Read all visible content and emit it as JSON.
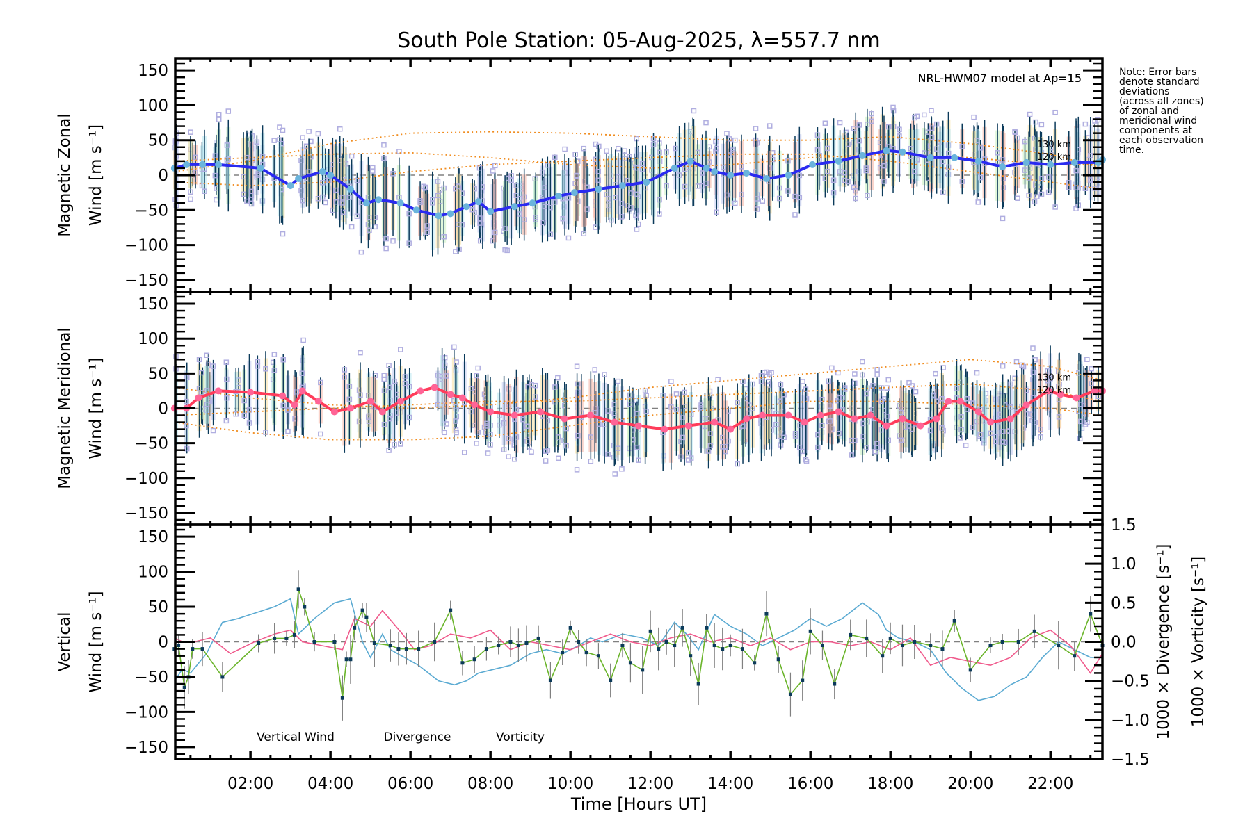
{
  "chart_data": [
    {
      "type": "line",
      "panel": "zonal",
      "title": "South Pole Station: 05-Aug-2025, λ=557.7 nm",
      "ylabel_line1": "Magnetic Zonal",
      "ylabel_line2": "Wind [m s⁻¹]",
      "ylim": [
        -167,
        167
      ],
      "yticks": [
        -150,
        -100,
        -50,
        0,
        50,
        100,
        150
      ],
      "model_label": "NRL-HWM07 model at Ap=15",
      "model_alt_labels": [
        "130 km",
        "120 km"
      ],
      "colors": {
        "line": "#2a2af0",
        "marker": "#6ab4dc",
        "errorbar": "#0b3a5a",
        "scatter": "#b0aee0",
        "model": "#f08c1e"
      },
      "series": [
        {
          "name": "Zonal wind",
          "x": [
            0.1,
            0.4,
            0.8,
            1.2,
            2.25,
            3.0,
            3.2,
            3.8,
            4.0,
            4.5,
            4.9,
            5.2,
            5.75,
            6.15,
            6.7,
            7.0,
            7.4,
            7.7,
            8.0,
            8.6,
            9.05,
            9.7,
            10.1,
            10.7,
            11.3,
            11.9,
            12.6,
            13.0,
            13.4,
            13.6,
            14.0,
            14.4,
            14.9,
            15.45,
            16.05,
            16.7,
            17.3,
            17.9,
            18.3,
            19.0,
            19.6,
            20.2,
            20.8,
            21.4,
            22.0,
            22.6,
            23.2,
            23.3
          ],
          "y": [
            10,
            15,
            15,
            15,
            10,
            -15,
            -5,
            5,
            0,
            -20,
            -40,
            -35,
            -40,
            -50,
            -58,
            -55,
            -45,
            -38,
            -52,
            -45,
            -40,
            -30,
            -25,
            -20,
            -15,
            -10,
            10,
            20,
            10,
            5,
            0,
            3,
            -5,
            0,
            15,
            20,
            28,
            35,
            33,
            25,
            25,
            20,
            12,
            18,
            15,
            18,
            18,
            22
          ]
        },
        {
          "name": "HWM07 model (dotted, upper)",
          "x": [
            0.1,
            2,
            4,
            6,
            8,
            10,
            12,
            14,
            16,
            18,
            20,
            22,
            23.3
          ],
          "y": [
            5,
            20,
            45,
            60,
            62,
            60,
            55,
            50,
            50,
            55,
            45,
            30,
            10
          ]
        },
        {
          "name": "HWM07 model (dotted, mid)",
          "x": [
            0.1,
            2,
            4,
            6,
            8,
            10,
            12,
            14,
            16,
            18,
            20,
            22,
            23.3
          ],
          "y": [
            20,
            25,
            30,
            32,
            25,
            15,
            10,
            15,
            25,
            30,
            25,
            15,
            15
          ]
        },
        {
          "name": "HWM07 model (dotted, lower)",
          "x": [
            0.1,
            2,
            4,
            6,
            8,
            10,
            12,
            14,
            16,
            18,
            20,
            22,
            23.3
          ],
          "y": [
            -10,
            -15,
            -10,
            5,
            15,
            20,
            25,
            30,
            30,
            20,
            5,
            -10,
            -20
          ]
        }
      ]
    },
    {
      "type": "line",
      "panel": "meridional",
      "ylabel_line1": "Magnetic Meridional",
      "ylabel_line2": "Wind [m s⁻¹]",
      "ylim": [
        -167,
        167
      ],
      "yticks": [
        -150,
        -100,
        -50,
        0,
        50,
        100,
        150
      ],
      "model_label": "NRL-HWM07 model at Ap=15",
      "model_alt_labels": [
        "130 km",
        "120 km"
      ],
      "colors": {
        "line": "#ff3c5a",
        "marker": "#ff6496",
        "errorbar": "#0b3a5a",
        "scatter": "#b0aee0",
        "model": "#f08c1e"
      },
      "series": [
        {
          "name": "Meridional wind",
          "x": [
            0.1,
            0.4,
            0.7,
            1.2,
            2.0,
            2.8,
            3.1,
            3.3,
            3.7,
            4.1,
            4.5,
            5.0,
            5.3,
            5.75,
            6.25,
            6.6,
            7.0,
            7.3,
            7.6,
            8.0,
            8.6,
            9.25,
            9.85,
            10.5,
            11.1,
            11.7,
            12.35,
            12.95,
            13.6,
            14.0,
            14.4,
            14.8,
            15.45,
            15.85,
            16.25,
            16.7,
            17.1,
            17.5,
            17.9,
            18.3,
            18.75,
            19.15,
            19.45,
            19.75,
            20.2,
            20.5,
            21.0,
            21.4,
            21.95,
            22.25,
            22.65,
            23.1,
            23.3
          ],
          "y": [
            0,
            0,
            15,
            25,
            23,
            18,
            5,
            25,
            10,
            -5,
            0,
            10,
            -5,
            10,
            25,
            30,
            20,
            15,
            5,
            -5,
            -10,
            -5,
            -15,
            -10,
            -20,
            -25,
            -30,
            -25,
            -20,
            -30,
            -15,
            -10,
            -10,
            -20,
            -10,
            -5,
            -15,
            -10,
            -25,
            -15,
            -25,
            -15,
            10,
            10,
            -5,
            -20,
            -15,
            5,
            25,
            20,
            15,
            25,
            25
          ]
        },
        {
          "name": "HWM07 model (dotted, upper)",
          "x": [
            0.1,
            2,
            4,
            6,
            8,
            10,
            12,
            14,
            16,
            18,
            20,
            22,
            23.3
          ],
          "y": [
            30,
            15,
            5,
            0,
            5,
            15,
            30,
            40,
            50,
            60,
            70,
            60,
            40
          ]
        },
        {
          "name": "HWM07 model (dotted, mid)",
          "x": [
            0.1,
            2,
            4,
            6,
            8,
            10,
            12,
            14,
            16,
            18,
            20,
            22,
            23.3
          ],
          "y": [
            -10,
            -5,
            0,
            5,
            10,
            10,
            15,
            20,
            25,
            30,
            35,
            25,
            10
          ]
        },
        {
          "name": "HWM07 model (dotted, lower)",
          "x": [
            0.1,
            2,
            4,
            6,
            8,
            10,
            12,
            14,
            16,
            18,
            20,
            22,
            23.3
          ],
          "y": [
            -20,
            -35,
            -45,
            -45,
            -40,
            -25,
            -10,
            0,
            10,
            10,
            5,
            0,
            -10
          ]
        }
      ]
    },
    {
      "type": "line",
      "panel": "vertical",
      "ylabel_line1": "Vertical",
      "ylabel_line2": "Wind [m s⁻¹]",
      "y2label_div": "1000 × Divergence [s⁻¹]",
      "y2label_vort": "1000 × Vorticity [s⁻¹]",
      "ylim": [
        -167,
        167
      ],
      "yticks": [
        -150,
        -100,
        -50,
        0,
        50,
        100,
        150
      ],
      "y2lim": [
        -1.5,
        1.5
      ],
      "y2ticks": [
        "1.5",
        "1.0",
        "0.5",
        "0.0",
        "-0.5",
        "-1.0",
        "-1.5"
      ],
      "xlabel": "Time [Hours UT]",
      "xlim": [
        0.12,
        23.3
      ],
      "xticks": [
        "02:00",
        "04:00",
        "06:00",
        "08:00",
        "10:00",
        "12:00",
        "14:00",
        "16:00",
        "18:00",
        "20:00",
        "22:00"
      ],
      "legend": [
        "Vertical Wind",
        "Divergence",
        "Vorticity"
      ],
      "legend_position": "bottom-left",
      "colors": {
        "vertical": "#6ab42a",
        "divergence": "#5aaad2",
        "vorticity": "#f05a8c",
        "marker": "#0b3a5a",
        "errorbar": "#808080"
      },
      "series": [
        {
          "name": "Vertical Wind",
          "x": [
            0.1,
            0.2,
            0.35,
            0.45,
            0.55,
            0.8,
            1.3,
            2.2,
            2.6,
            2.9,
            3.1,
            3.2,
            3.35,
            3.6,
            4.1,
            4.3,
            4.4,
            4.5,
            4.6,
            4.8,
            4.9,
            5.1,
            5.5,
            5.7,
            5.9,
            6.2,
            6.6,
            7.0,
            7.3,
            7.6,
            7.9,
            8.2,
            8.5,
            8.7,
            8.9,
            9.2,
            9.5,
            9.8,
            10.0,
            10.2,
            10.4,
            10.7,
            11.0,
            11.3,
            11.5,
            11.8,
            12.0,
            12.2,
            12.4,
            12.6,
            12.8,
            13.0,
            13.2,
            13.4,
            13.6,
            13.8,
            14.0,
            14.3,
            14.6,
            14.9,
            15.2,
            15.5,
            15.8,
            16.0,
            16.3,
            16.6,
            17.0,
            17.4,
            17.8,
            18.0,
            18.3,
            18.6,
            19.0,
            19.3,
            19.6,
            20.0,
            20.5,
            20.8,
            21.2,
            21.6,
            22.2,
            22.6,
            23.0,
            23.3
          ],
          "y": [
            -10,
            -5,
            -65,
            -50,
            -10,
            -10,
            -50,
            -2,
            5,
            5,
            10,
            75,
            50,
            0,
            0,
            -80,
            -25,
            -25,
            20,
            45,
            35,
            -2,
            -5,
            -10,
            -10,
            -10,
            0,
            45,
            -30,
            -25,
            -10,
            -5,
            0,
            -5,
            -2,
            5,
            -55,
            -15,
            20,
            0,
            -15,
            -20,
            -55,
            -5,
            -30,
            -40,
            15,
            -10,
            0,
            -5,
            20,
            -20,
            -60,
            20,
            -5,
            -10,
            -5,
            -10,
            -30,
            40,
            -25,
            -75,
            -55,
            15,
            -5,
            -60,
            10,
            5,
            -20,
            5,
            -5,
            0,
            -5,
            -10,
            30,
            -40,
            -5,
            0,
            0,
            15,
            -5,
            -20,
            40,
            -5
          ]
        },
        {
          "name": "Divergence",
          "x": [
            0.1,
            0.3,
            0.5,
            0.9,
            1.3,
            1.7,
            2.6,
            3.0,
            3.2,
            3.6,
            4.1,
            4.5,
            4.8,
            5.0,
            5.3,
            5.5,
            6.2,
            6.7,
            7.1,
            7.4,
            7.7,
            8.1,
            8.5,
            9.0,
            9.4,
            9.8,
            10.2,
            10.5,
            10.8,
            11.3,
            11.8,
            12.2,
            12.6,
            12.9,
            13.2,
            13.6,
            14.0,
            14.4,
            14.8,
            15.2,
            15.6,
            16.0,
            16.4,
            16.8,
            17.3,
            17.7,
            17.9,
            18.2,
            18.6,
            19.0,
            19.4,
            19.8,
            20.2,
            20.6,
            21.0,
            21.4,
            21.8,
            22.2,
            22.6,
            23.0,
            23.3
          ],
          "y": [
            -0.5,
            -0.35,
            -0.4,
            -0.15,
            0.25,
            0.3,
            0.45,
            0.55,
            0.1,
            0.3,
            0.5,
            0.55,
            0.0,
            -0.2,
            0.1,
            -0.1,
            -0.3,
            -0.5,
            -0.55,
            -0.5,
            -0.4,
            -0.35,
            -0.3,
            -0.15,
            -0.1,
            -0.15,
            -0.05,
            0.05,
            0.0,
            0.1,
            0.05,
            -0.05,
            0.25,
            0.1,
            -0.1,
            0.35,
            0.2,
            0.1,
            -0.05,
            0.05,
            0.15,
            0.3,
            0.2,
            0.3,
            0.5,
            0.35,
            0.15,
            0.05,
            0.0,
            -0.1,
            -0.4,
            -0.6,
            -0.75,
            -0.7,
            -0.55,
            -0.45,
            -0.2,
            0.0,
            -0.1,
            -0.2,
            -0.2
          ]
        },
        {
          "name": "Vorticity",
          "x": [
            0.1,
            0.3,
            0.6,
            1.0,
            1.5,
            2.1,
            2.6,
            3.0,
            3.3,
            3.8,
            4.3,
            4.6,
            5.0,
            5.3,
            5.8,
            6.1,
            6.5,
            7.0,
            7.5,
            8.0,
            8.5,
            9.0,
            9.5,
            10.0,
            10.5,
            11.0,
            11.5,
            12.0,
            12.5,
            13.0,
            13.5,
            14.0,
            14.5,
            15.0,
            15.5,
            16.0,
            16.5,
            17.0,
            17.5,
            18.0,
            18.5,
            19.0,
            19.5,
            20.0,
            20.5,
            21.0,
            21.5,
            22.0,
            22.5,
            23.0,
            23.3
          ],
          "y": [
            0.05,
            0.0,
            0.0,
            0.05,
            -0.15,
            0.0,
            0.1,
            0.15,
            0.0,
            -0.05,
            -0.1,
            0.3,
            0.2,
            0.4,
            0.1,
            -0.1,
            -0.05,
            0.1,
            0.05,
            0.15,
            -0.1,
            0.0,
            -0.05,
            -0.1,
            0.0,
            0.1,
            0.0,
            -0.05,
            0.05,
            0.1,
            0.0,
            0.05,
            -0.05,
            0.05,
            -0.1,
            0.0,
            0.0,
            -0.05,
            0.0,
            -0.1,
            0.05,
            -0.3,
            -0.2,
            -0.25,
            -0.3,
            -0.2,
            0.05,
            0.15,
            -0.05,
            -0.4,
            -0.15
          ]
        }
      ]
    }
  ],
  "note": {
    "lines": [
      "Note: Error bars",
      "denote standard",
      "deviations",
      "(across all zones)",
      "of zonal and",
      "meridional wind",
      "components at",
      "each observation",
      "time."
    ]
  }
}
